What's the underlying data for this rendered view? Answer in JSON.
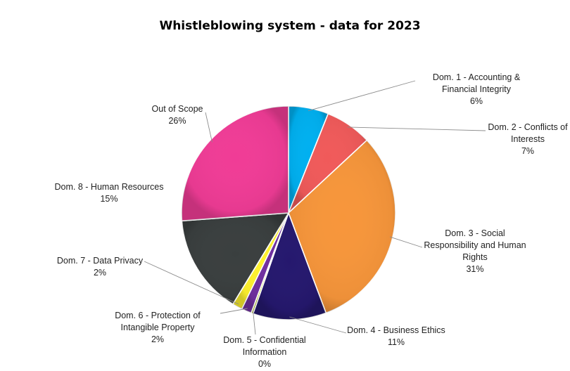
{
  "chart_data": {
    "type": "pie",
    "title": "Whistleblowing system - data for 2023",
    "slices": [
      {
        "label": "Dom. 1 - Accounting & Financial Integrity",
        "lines": [
          "Dom. 1 - Accounting &",
          "Financial Integrity"
        ],
        "value": 6,
        "pct": "6%",
        "color": "#00B0F0"
      },
      {
        "label": "Dom. 2 - Conflicts of Interests",
        "lines": [
          "Dom. 2 - Conflicts of",
          "Interests"
        ],
        "value": 7,
        "pct": "7%",
        "color": "#F05A5A"
      },
      {
        "label": "Dom. 3 - Social Responsibility and Human Rights",
        "lines": [
          "Dom. 3 - Social",
          "Responsibility and Human",
          "Rights"
        ],
        "value": 31,
        "pct": "31%",
        "color": "#F7963B"
      },
      {
        "label": "Dom. 4 - Business Ethics",
        "lines": [
          "Dom. 4 - Business Ethics"
        ],
        "value": 11,
        "pct": "11%",
        "color": "#25186E"
      },
      {
        "label": "Dom. 5 - Confidential Information",
        "lines": [
          "Dom. 5 - Confidential",
          "Information"
        ],
        "value": 0.3,
        "pct": "0%",
        "color": "#C9D932"
      },
      {
        "label": "Dom. 6 - Protection of Intangible Property",
        "lines": [
          "Dom. 6 - Protection of",
          "Intangible Property"
        ],
        "value": 1.5,
        "pct": "2%",
        "color": "#7030A0"
      },
      {
        "label": "Dom. 7 - Data Privacy",
        "lines": [
          "Dom. 7 - Data Privacy"
        ],
        "value": 1.5,
        "pct": "2%",
        "color": "#FFF22E"
      },
      {
        "label": "Dom. 8 - Human Resources",
        "lines": [
          "Dom. 8 - Human Resources"
        ],
        "value": 15,
        "pct": "15%",
        "color": "#3A3F3F"
      },
      {
        "label": "Out of Scope",
        "lines": [
          "Out of Scope"
        ],
        "value": 26,
        "pct": "26%",
        "color": "#F03C96"
      }
    ],
    "legend": "none"
  }
}
